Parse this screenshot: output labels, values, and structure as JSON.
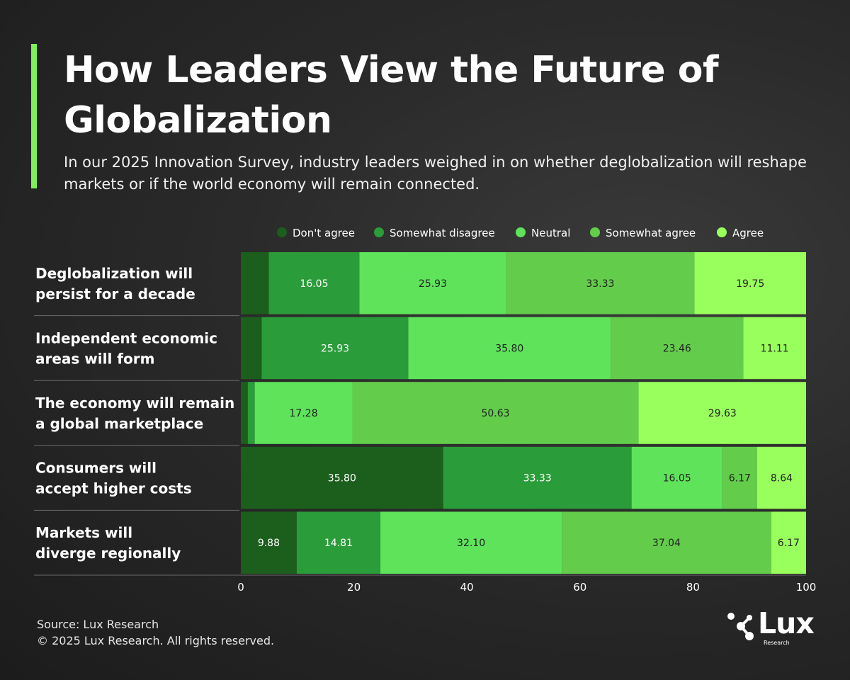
{
  "header": {
    "title": "How Leaders View the Future of Globalization",
    "subtitle": "In our 2025 Innovation Survey, industry leaders weighed in on whether deglobalization will reshape markets or if the world economy will remain connected."
  },
  "footer": {
    "source": "Source: Lux Research",
    "copyright": "© 2025 Lux Research. All rights reserved."
  },
  "logo": {
    "word": "Lux",
    "sub": "Research"
  },
  "colors": {
    "background": "#252525",
    "accent": "#7ef15a",
    "text": "#ffffff",
    "divider": "#6a6a6a"
  },
  "chart_data": {
    "type": "bar",
    "orientation": "horizontal",
    "stacked": true,
    "title": "How Leaders View the Future of Globalization",
    "xlabel": "",
    "ylabel": "",
    "xlim": [
      0,
      100
    ],
    "xticks": [
      0,
      20,
      40,
      60,
      80,
      100
    ],
    "legend_position": "top",
    "categories": [
      [
        "Deglobalization will",
        "persist for a decade"
      ],
      [
        "Independent economic",
        "areas will form"
      ],
      [
        "The economy will remain",
        "a global marketplace"
      ],
      [
        "Consumers will",
        "accept higher costs"
      ],
      [
        "Markets will",
        "diverge regionally"
      ]
    ],
    "series": [
      {
        "name": "Don't agree",
        "color": "#1c5e1c",
        "label_color": "#ffffff",
        "values": [
          4.94,
          3.7,
          1.23,
          35.8,
          9.88
        ]
      },
      {
        "name": "Somewhat disagree",
        "color": "#2b9c3a",
        "label_color": "#ffffff",
        "values": [
          16.05,
          25.93,
          1.23,
          33.33,
          14.81
        ]
      },
      {
        "name": "Neutral",
        "color": "#5ee35a",
        "label_color": "#222222",
        "values": [
          25.93,
          35.8,
          17.28,
          16.05,
          32.1
        ]
      },
      {
        "name": "Somewhat agree",
        "color": "#63cd4b",
        "label_color": "#222222",
        "values": [
          33.33,
          23.46,
          50.63,
          6.17,
          37.04
        ]
      },
      {
        "name": "Agree",
        "color": "#99ff5c",
        "label_color": "#222222",
        "values": [
          19.75,
          11.11,
          29.63,
          8.64,
          6.17
        ]
      }
    ],
    "data_labels": [
      [
        "",
        "16.05",
        "25.93",
        "33.33",
        "19.75"
      ],
      [
        "",
        "25.93",
        "35.80",
        "23.46",
        "11.11"
      ],
      [
        "",
        "",
        "17.28",
        "50.63",
        "29.63"
      ],
      [
        "35.80",
        "33.33",
        "16.05",
        "6.17",
        "8.64"
      ],
      [
        "9.88",
        "14.81",
        "32.10",
        "37.04",
        "6.17"
      ]
    ]
  }
}
